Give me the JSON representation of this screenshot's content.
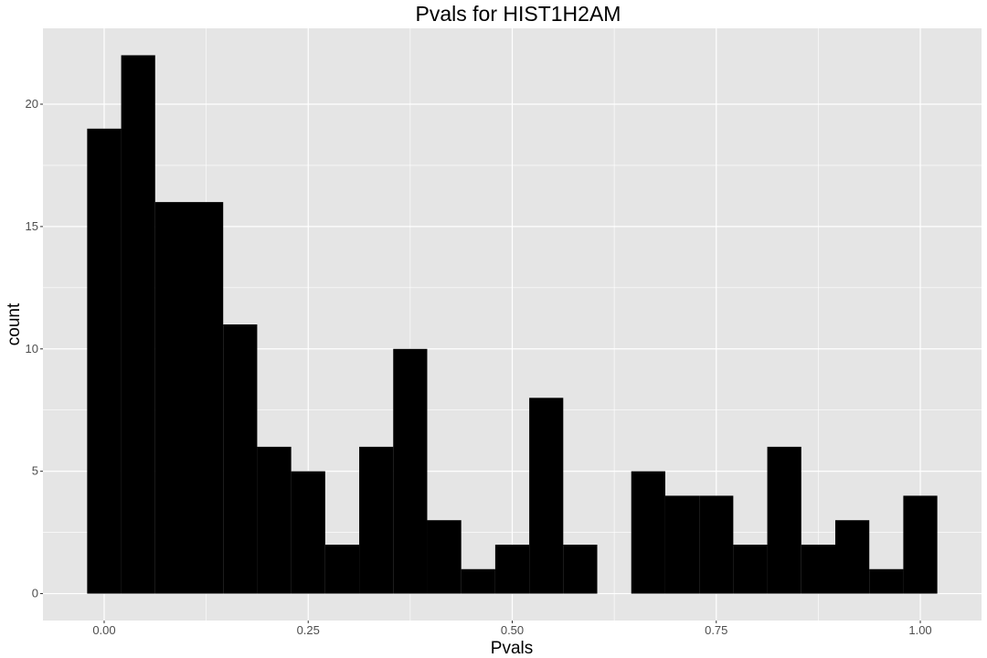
{
  "chart_data": {
    "type": "bar",
    "title": "Pvals for HIST1H2AM",
    "xlabel": "Pvals",
    "ylabel": "count",
    "xlim": [
      -0.075,
      1.075
    ],
    "ylim": [
      -1.1,
      23.1
    ],
    "x_ticks": [
      0.0,
      0.25,
      0.5,
      0.75,
      1.0
    ],
    "x_tick_labels": [
      "0.00",
      "0.25",
      "0.50",
      "0.75",
      "1.00"
    ],
    "y_ticks": [
      0,
      5,
      10,
      15,
      20
    ],
    "y_tick_labels": [
      "0",
      "5",
      "10",
      "15",
      "20"
    ],
    "bin_width": 0.04167,
    "bin_centers": [
      0.0,
      0.04167,
      0.08333,
      0.125,
      0.16667,
      0.20833,
      0.25,
      0.29167,
      0.33333,
      0.375,
      0.41667,
      0.45833,
      0.5,
      0.54167,
      0.58333,
      0.625,
      0.66667,
      0.70833,
      0.75,
      0.79167,
      0.83333,
      0.875,
      0.91667,
      0.95833,
      1.0
    ],
    "counts": [
      19,
      22,
      16,
      16,
      11,
      6,
      5,
      2,
      6,
      10,
      3,
      1,
      2,
      8,
      2,
      0,
      5,
      4,
      4,
      2,
      6,
      2,
      3,
      1,
      4
    ],
    "bar_color": "#000000",
    "panel_background": "#e5e5e5",
    "grid_color": "#ffffff",
    "grid": true,
    "legend": "none"
  }
}
